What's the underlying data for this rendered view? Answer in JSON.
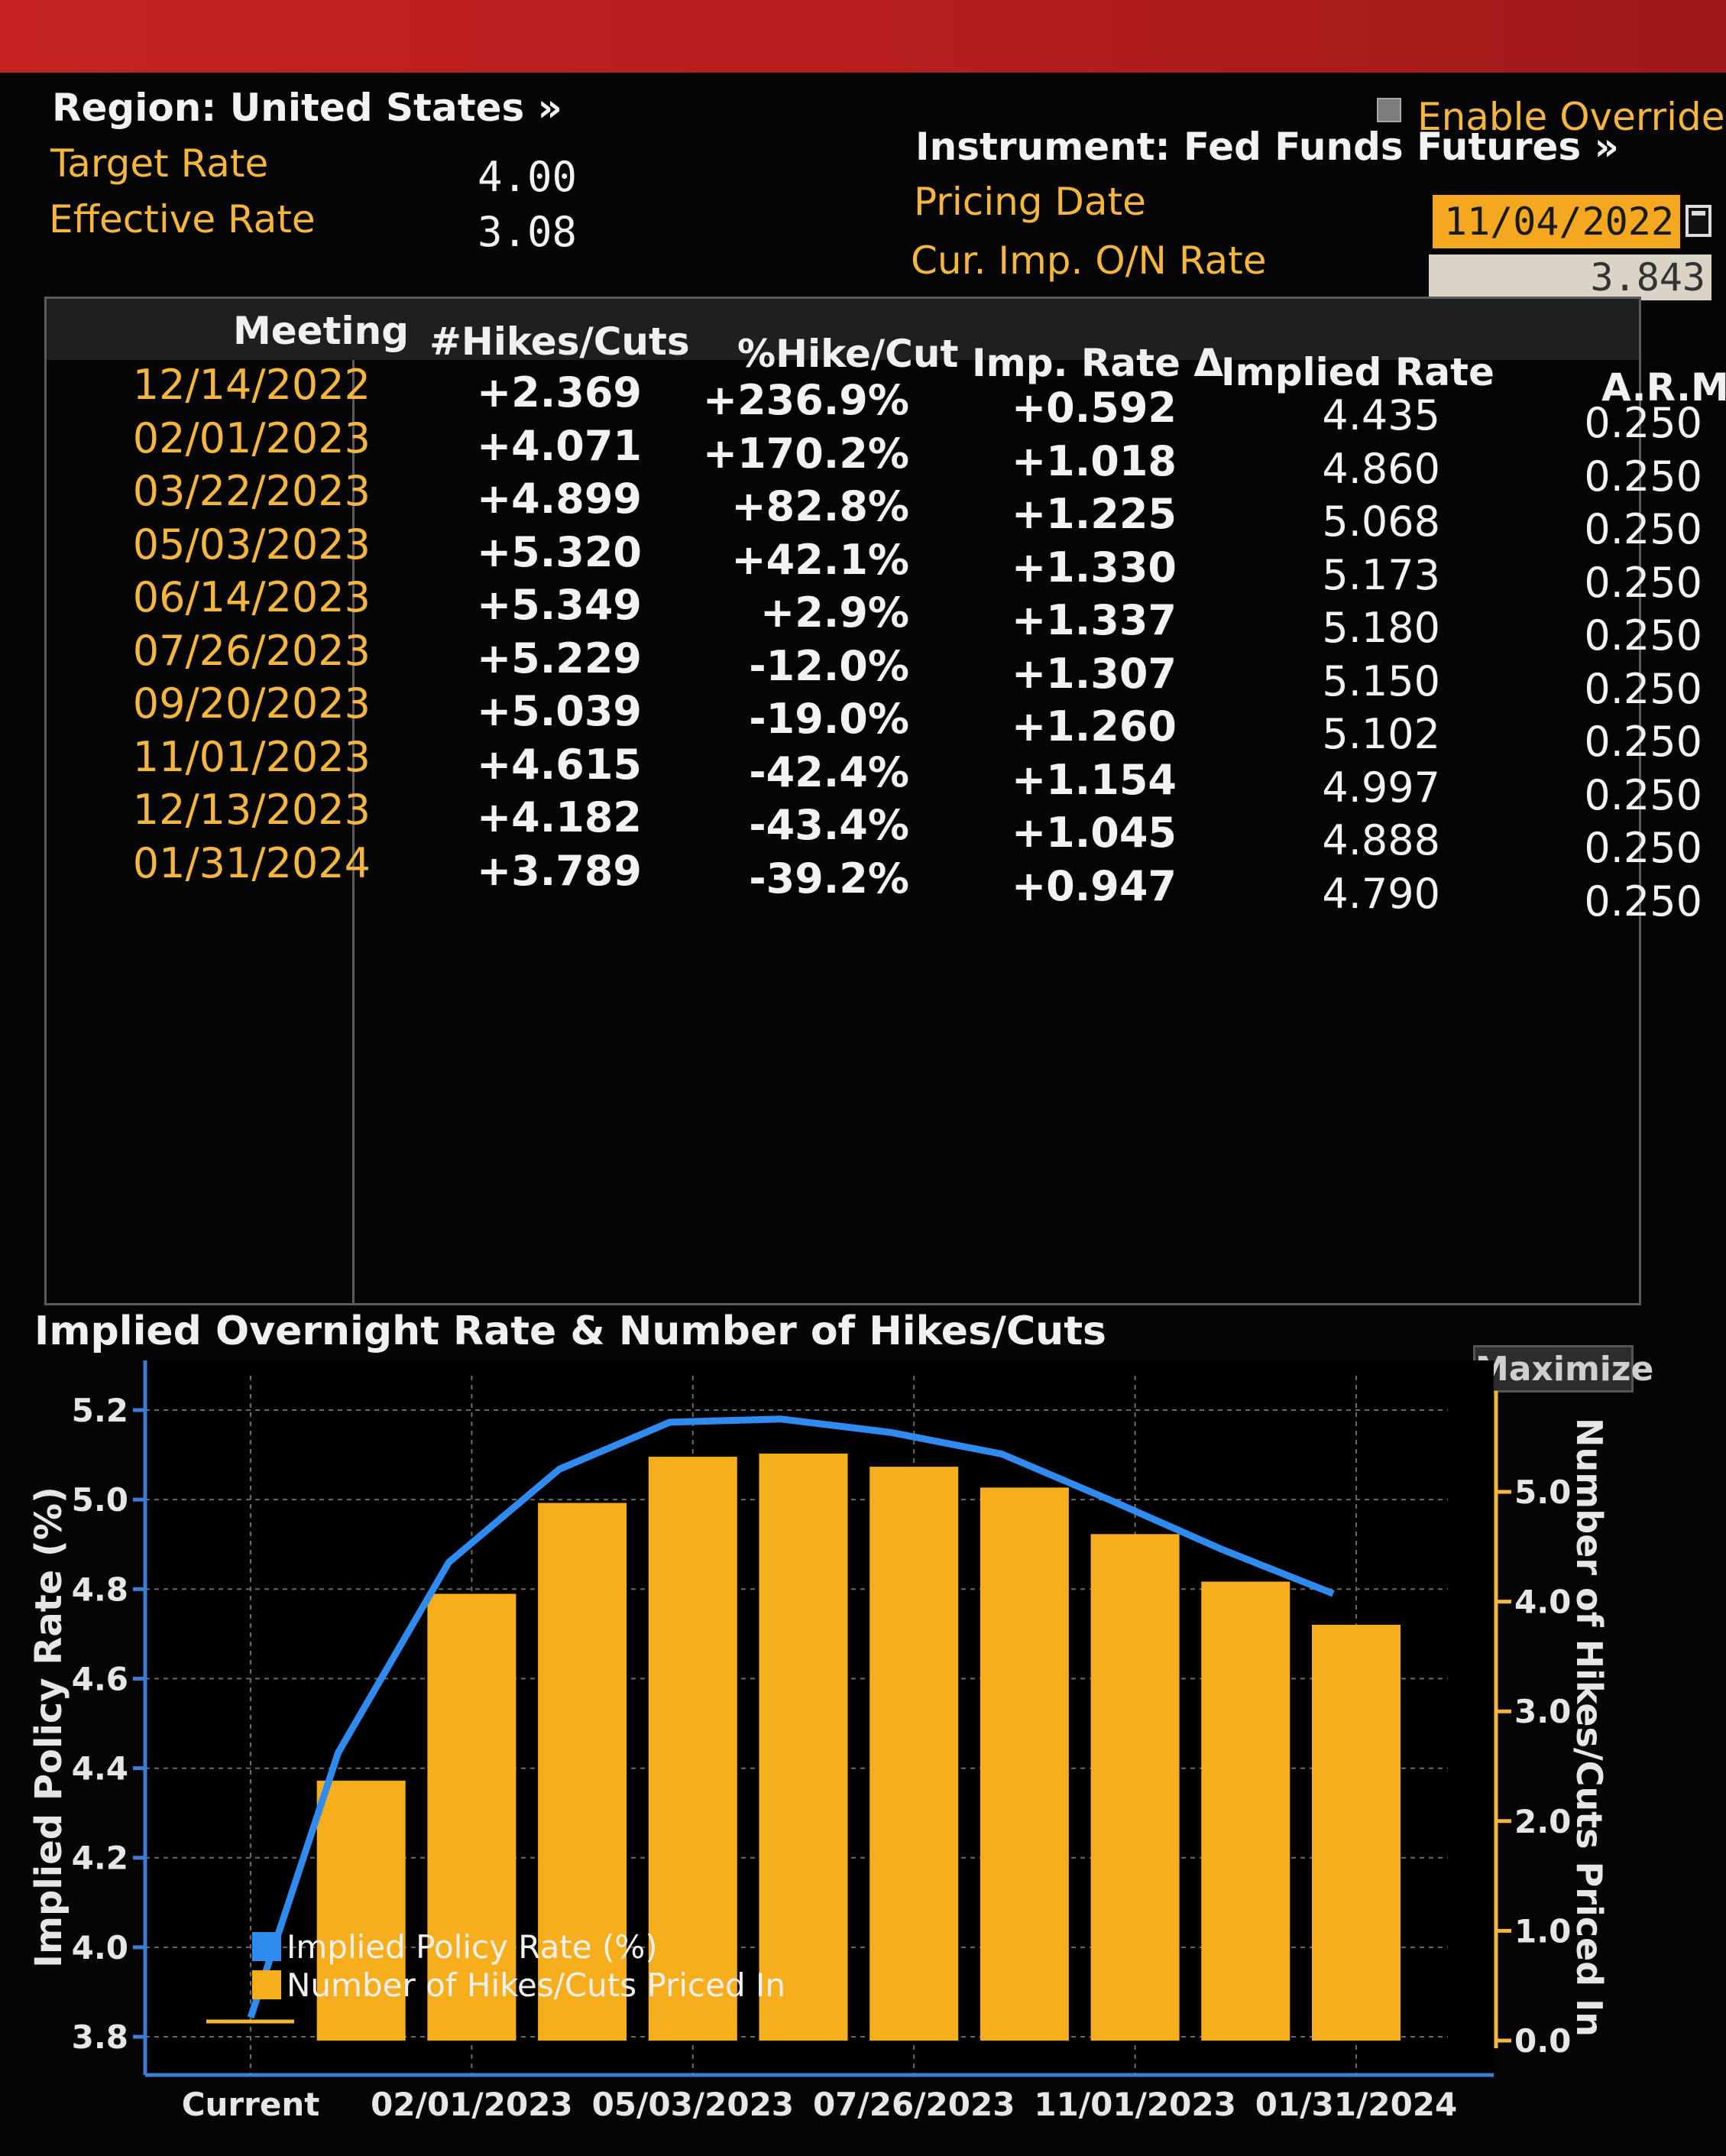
{
  "header": {
    "region_label": "Region: United States »",
    "target_rate_label": "Target Rate",
    "target_rate_value": "4.00",
    "effective_rate_label": "Effective Rate",
    "effective_rate_value": "3.08",
    "enable_overrides_label": "Enable Overrides",
    "instrument_label": "Instrument: Fed Funds Futures »",
    "pricing_date_label": "Pricing Date",
    "pricing_date_value": "11/04/2022",
    "cur_rate_label": "Cur. Imp. O/N Rate",
    "cur_rate_value": "3.843"
  },
  "table": {
    "columns": [
      "Meeting",
      "#Hikes/Cuts",
      "%Hike/Cut",
      "Imp. Rate Δ",
      "Implied Rate",
      "A.R.M."
    ],
    "rows": [
      [
        "12/14/2022",
        "+2.369",
        "+236.9%",
        "+0.592",
        "4.435",
        "0.250"
      ],
      [
        "02/01/2023",
        "+4.071",
        "+170.2%",
        "+1.018",
        "4.860",
        "0.250"
      ],
      [
        "03/22/2023",
        "+4.899",
        "+82.8%",
        "+1.225",
        "5.068",
        "0.250"
      ],
      [
        "05/03/2023",
        "+5.320",
        "+42.1%",
        "+1.330",
        "5.173",
        "0.250"
      ],
      [
        "06/14/2023",
        "+5.349",
        "+2.9%",
        "+1.337",
        "5.180",
        "0.250"
      ],
      [
        "07/26/2023",
        "+5.229",
        "-12.0%",
        "+1.307",
        "5.150",
        "0.250"
      ],
      [
        "09/20/2023",
        "+5.039",
        "-19.0%",
        "+1.260",
        "5.102",
        "0.250"
      ],
      [
        "11/01/2023",
        "+4.615",
        "-42.4%",
        "+1.154",
        "4.997",
        "0.250"
      ],
      [
        "12/13/2023",
        "+4.182",
        "-43.4%",
        "+1.045",
        "4.888",
        "0.250"
      ],
      [
        "01/31/2024",
        "+3.789",
        "-39.2%",
        "+0.947",
        "4.790",
        "0.250"
      ]
    ]
  },
  "chart": {
    "title": "Implied Overnight Rate & Number of Hikes/Cuts",
    "maximize_label": "Maximize"
  },
  "chart_data": {
    "type": "bar",
    "categories": [
      "Current",
      "12/14/2022",
      "02/01/2023",
      "03/22/2023",
      "05/03/2023",
      "06/14/2023",
      "07/26/2023",
      "09/20/2023",
      "11/01/2023",
      "12/13/2023",
      "01/31/2024"
    ],
    "x_tick_labels": [
      "Current",
      "02/01/2023",
      "05/03/2023",
      "07/26/2023",
      "11/01/2023",
      "01/31/2024"
    ],
    "series": [
      {
        "name": "Number of Hikes/Cuts Priced In",
        "type": "bar",
        "axis": "right",
        "color": "#f7ae1c",
        "values": [
          null,
          2.369,
          4.071,
          4.899,
          5.32,
          5.349,
          5.229,
          5.039,
          4.615,
          4.182,
          3.789
        ]
      },
      {
        "name": "Implied Policy Rate (%)",
        "type": "line",
        "axis": "left",
        "color": "#2f8bf0",
        "values": [
          3.843,
          4.435,
          4.86,
          5.068,
          5.173,
          5.18,
          5.15,
          5.102,
          4.997,
          4.888,
          4.79
        ]
      }
    ],
    "ylabel": "Implied Policy Rate (%)",
    "y2label": "Number of Hikes/Cuts Priced In",
    "ylim": [
      3.8,
      5.2
    ],
    "yticks": [
      "3.8",
      "4.0",
      "4.2",
      "4.4",
      "4.6",
      "4.8",
      "5.0",
      "5.2"
    ],
    "y2lim": [
      0,
      5.0
    ],
    "y2ticks": [
      "0.0",
      "1.0",
      "2.0",
      "3.0",
      "4.0",
      "5.0"
    ],
    "legend": [
      "Implied Policy Rate (%)",
      "Number of Hikes/Cuts Priced In"
    ],
    "legend_position": "bottom-left",
    "grid": true
  }
}
